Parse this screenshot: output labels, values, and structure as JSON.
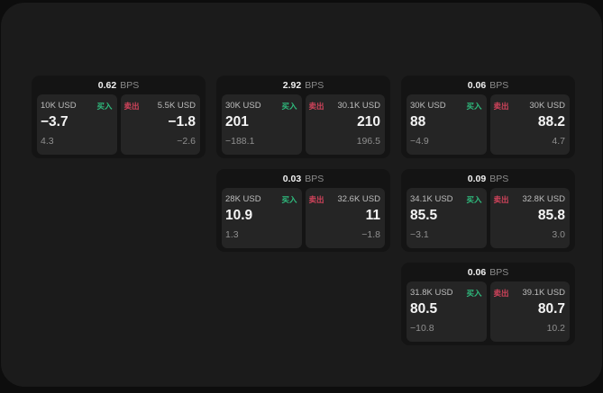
{
  "colors": {
    "buy": "#2fbe7f",
    "sell": "#d4445c",
    "surface": "#1b1b1b",
    "card": "#141414",
    "panel": "#252525"
  },
  "labels": {
    "bps": "BPS",
    "buy": "买入",
    "sell": "卖出"
  },
  "cards": [
    {
      "row": 1,
      "col": 1,
      "bps": "0.62",
      "buy": {
        "amount": "10K USD",
        "value": "−3.7",
        "sub": "4.3"
      },
      "sell": {
        "amount": "5.5K USD",
        "value": "−1.8",
        "sub": "−2.6"
      }
    },
    {
      "row": 1,
      "col": 2,
      "bps": "2.92",
      "buy": {
        "amount": "30K USD",
        "value": "201",
        "sub": "−188.1"
      },
      "sell": {
        "amount": "30.1K USD",
        "value": "210",
        "sub": "196.5"
      }
    },
    {
      "row": 1,
      "col": 3,
      "bps": "0.06",
      "buy": {
        "amount": "30K USD",
        "value": "88",
        "sub": "−4.9"
      },
      "sell": {
        "amount": "30K USD",
        "value": "88.2",
        "sub": "4.7"
      }
    },
    {
      "row": 2,
      "col": 2,
      "bps": "0.03",
      "buy": {
        "amount": "28K USD",
        "value": "10.9",
        "sub": "1.3"
      },
      "sell": {
        "amount": "32.6K USD",
        "value": "11",
        "sub": "−1.8"
      }
    },
    {
      "row": 2,
      "col": 3,
      "bps": "0.09",
      "buy": {
        "amount": "34.1K USD",
        "value": "85.5",
        "sub": "−3.1"
      },
      "sell": {
        "amount": "32.8K USD",
        "value": "85.8",
        "sub": "3.0"
      }
    },
    {
      "row": 3,
      "col": 3,
      "bps": "0.06",
      "buy": {
        "amount": "31.8K USD",
        "value": "80.5",
        "sub": "−10.8"
      },
      "sell": {
        "amount": "39.1K USD",
        "value": "80.7",
        "sub": "10.2"
      }
    }
  ]
}
